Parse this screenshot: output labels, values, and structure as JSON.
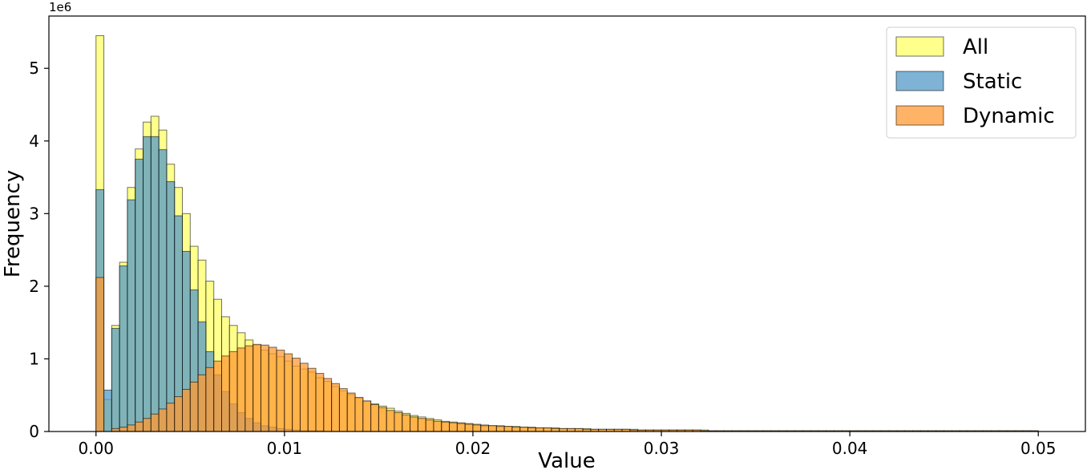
{
  "chart_data": {
    "type": "histogram",
    "xlabel": "Value",
    "ylabel": "Frequency",
    "y_multiplier": "1e6",
    "xlim": [
      -0.0025,
      0.0525
    ],
    "ylim": [
      0,
      5.72
    ],
    "x_ticks": [
      0.0,
      0.01,
      0.02,
      0.03,
      0.04,
      0.05
    ],
    "x_tick_labels": [
      "0.00",
      "0.01",
      "0.02",
      "0.03",
      "0.04",
      "0.05"
    ],
    "y_ticks": [
      0,
      1,
      2,
      3,
      4,
      5
    ],
    "y_tick_labels": [
      "0",
      "1",
      "2",
      "3",
      "4",
      "5"
    ],
    "bin_range": [
      0.0,
      0.05
    ],
    "bin_width": 0.0004167,
    "bin_count": 120,
    "legend_position": "top-right",
    "series": [
      {
        "name": "All",
        "color": "#ffff66",
        "values": [
          5.45,
          0.44,
          1.46,
          2.33,
          3.36,
          3.89,
          4.26,
          4.34,
          4.15,
          3.68,
          3.36,
          3.0,
          2.55,
          2.36,
          2.07,
          1.82,
          1.58,
          1.46,
          1.36,
          1.26,
          1.19,
          1.12,
          1.07,
          1.03,
          0.97,
          0.9,
          0.86,
          0.82,
          0.74,
          0.69,
          0.62,
          0.56,
          0.51,
          0.46,
          0.42,
          0.38,
          0.35,
          0.32,
          0.28,
          0.25,
          0.22,
          0.2,
          0.18,
          0.16,
          0.14,
          0.13,
          0.12,
          0.11,
          0.1,
          0.09,
          0.08,
          0.08,
          0.07,
          0.07,
          0.06,
          0.06,
          0.05,
          0.05,
          0.05,
          0.04,
          0.04,
          0.04,
          0.04,
          0.03,
          0.03,
          0.03,
          0.03,
          0.03,
          0.03,
          0.02,
          0.02,
          0.02,
          0.02,
          0.02,
          0.02,
          0.02,
          0.02,
          0.02,
          0.01,
          0.01,
          0.01,
          0.01,
          0.01,
          0.01,
          0.01,
          0.01,
          0.01,
          0.01,
          0.01,
          0.01,
          0.01,
          0.01,
          0.01,
          0.01,
          0.01,
          0.01,
          0.01,
          0.01,
          0.01,
          0.01,
          0.01,
          0.01,
          0.01,
          0.01,
          0.01,
          0.01,
          0.01,
          0.01,
          0.01,
          0.01,
          0.01,
          0.01,
          0.01,
          0.01,
          0.01,
          0.01,
          0.01,
          0.01,
          0.01,
          0.01
        ]
      },
      {
        "name": "Static",
        "color": "#5499c7",
        "values": [
          3.33,
          0.57,
          1.42,
          2.28,
          3.19,
          3.75,
          4.06,
          4.06,
          3.88,
          3.44,
          2.97,
          2.48,
          1.95,
          1.51,
          1.1,
          0.78,
          0.55,
          0.38,
          0.26,
          0.18,
          0.12,
          0.08,
          0.06,
          0.04,
          0.03,
          0.02,
          0.01,
          0.01,
          0.01,
          0.0,
          0.0,
          0.0,
          0.0,
          0.0,
          0.0,
          0.0,
          0.0,
          0.0,
          0.0,
          0.0,
          0.0,
          0.0,
          0.0,
          0.0,
          0.0,
          0.0,
          0.0,
          0.0,
          0.0,
          0.0,
          0.0,
          0.0,
          0.0,
          0.0,
          0.0,
          0.0,
          0.0,
          0.0,
          0.0,
          0.0,
          0.0,
          0.0,
          0.0,
          0.0,
          0.0,
          0.0,
          0.0,
          0.0,
          0.0,
          0.0,
          0.0,
          0.0,
          0.0,
          0.0,
          0.0,
          0.0,
          0.0,
          0.0,
          0.0,
          0.0,
          0.0,
          0.0,
          0.0,
          0.0,
          0.0,
          0.0,
          0.0,
          0.0,
          0.0,
          0.0,
          0.0,
          0.0,
          0.0,
          0.0,
          0.0,
          0.0,
          0.0,
          0.0,
          0.0,
          0.0,
          0.0,
          0.0,
          0.0,
          0.0,
          0.0,
          0.0,
          0.0,
          0.0,
          0.0,
          0.0,
          0.0,
          0.0,
          0.0,
          0.0,
          0.0,
          0.0,
          0.0,
          0.0,
          0.0,
          0.0
        ]
      },
      {
        "name": "Dynamic",
        "color": "#ff9933",
        "values": [
          2.12,
          0.0,
          0.04,
          0.06,
          0.09,
          0.13,
          0.18,
          0.24,
          0.31,
          0.39,
          0.48,
          0.58,
          0.68,
          0.78,
          0.88,
          0.97,
          1.04,
          1.1,
          1.15,
          1.18,
          1.2,
          1.19,
          1.16,
          1.12,
          1.07,
          1.01,
          0.94,
          0.87,
          0.8,
          0.73,
          0.66,
          0.59,
          0.53,
          0.47,
          0.42,
          0.37,
          0.33,
          0.29,
          0.26,
          0.23,
          0.2,
          0.18,
          0.16,
          0.14,
          0.13,
          0.12,
          0.11,
          0.1,
          0.09,
          0.08,
          0.08,
          0.07,
          0.07,
          0.06,
          0.06,
          0.05,
          0.05,
          0.05,
          0.04,
          0.04,
          0.04,
          0.04,
          0.03,
          0.03,
          0.03,
          0.03,
          0.03,
          0.03,
          0.02,
          0.02,
          0.02,
          0.02,
          0.02,
          0.02,
          0.02,
          0.02,
          0.02,
          0.01,
          0.01,
          0.01,
          0.01,
          0.01,
          0.01,
          0.01,
          0.01,
          0.01,
          0.01,
          0.01,
          0.01,
          0.01,
          0.01,
          0.01,
          0.01,
          0.01,
          0.01,
          0.01,
          0.01,
          0.01,
          0.01,
          0.01,
          0.01,
          0.01,
          0.01,
          0.01,
          0.01,
          0.01,
          0.01,
          0.01,
          0.01,
          0.01,
          0.01,
          0.01,
          0.01,
          0.01,
          0.01,
          0.01,
          0.01,
          0.01,
          0.01,
          0.01
        ]
      }
    ]
  }
}
